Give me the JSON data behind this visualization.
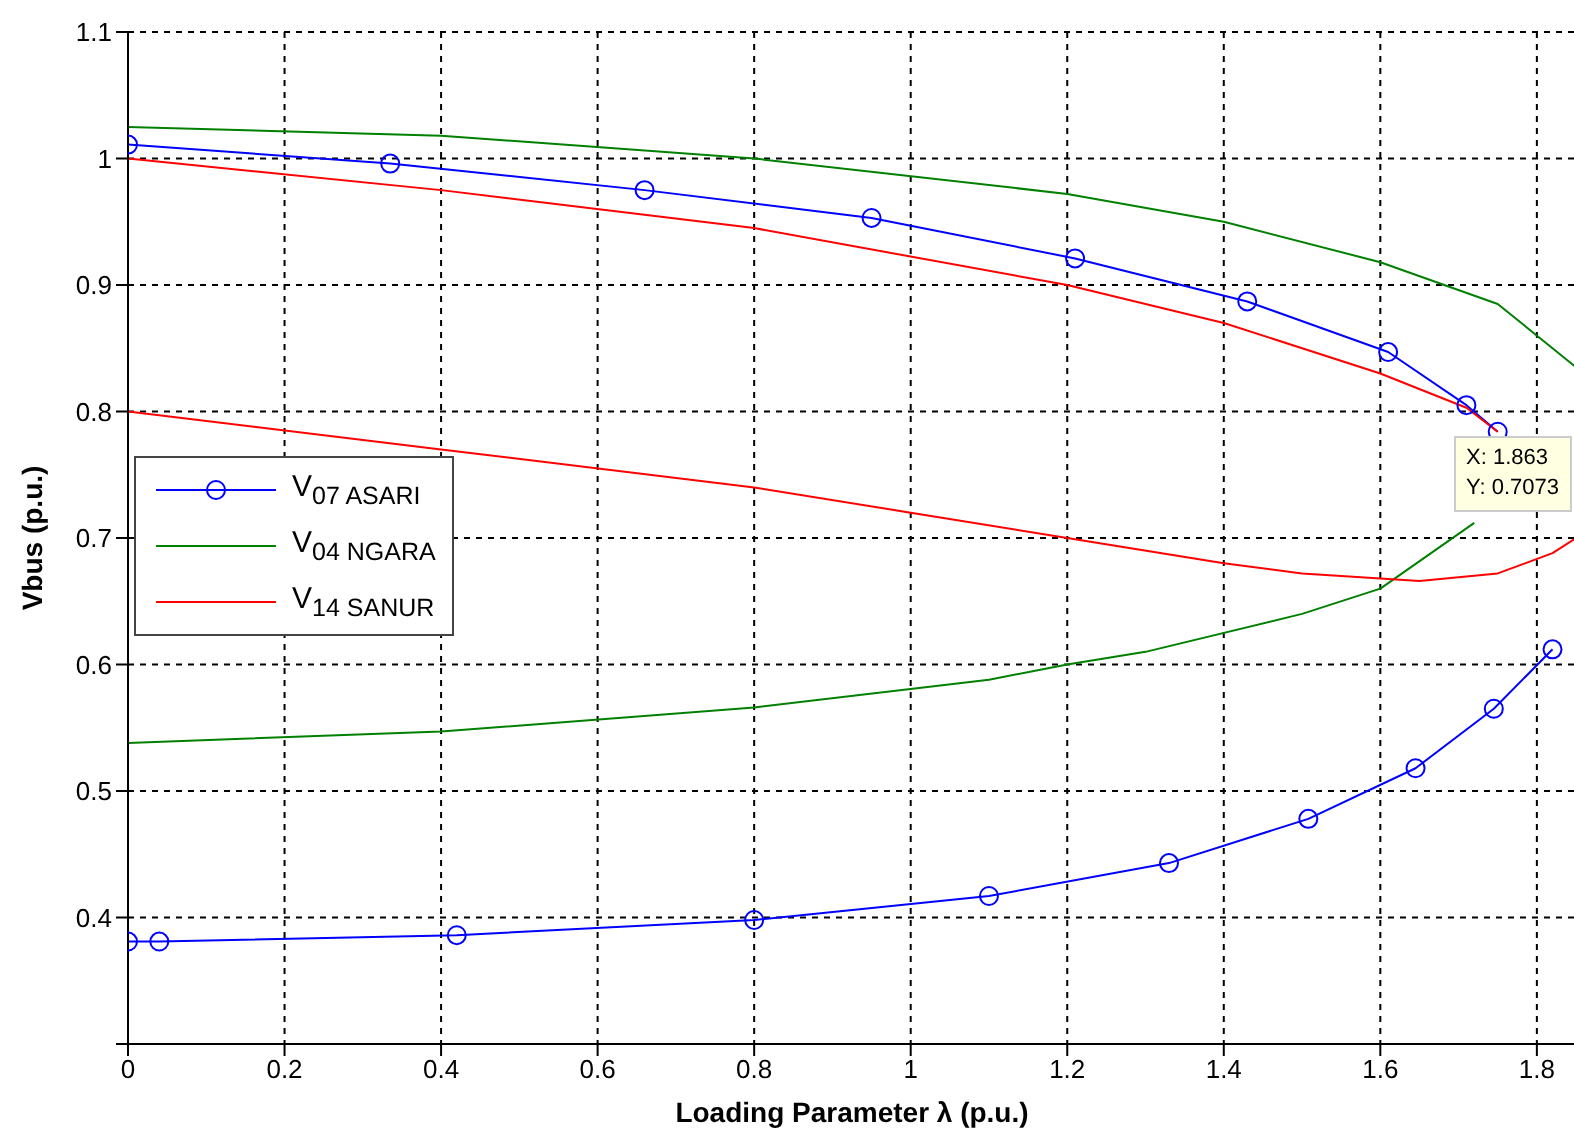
{
  "chart_data": {
    "type": "line",
    "xlabel": "Loading Parameter λ (p.u.)",
    "ylabel": "Vbus (p.u.)",
    "xlim": [
      0,
      1.85
    ],
    "xticks": [
      0,
      0.2,
      0.4,
      0.6,
      0.8,
      1,
      1.2,
      1.4,
      1.6,
      1.8
    ],
    "ylim": [
      0.3,
      1.1
    ],
    "yticks": [
      {
        "value": 0.3,
        "label": null
      },
      0.4,
      0.5,
      0.6,
      0.7,
      0.8,
      0.9,
      1,
      1.1
    ],
    "grid": true,
    "legend": "left",
    "line_style": "solid",
    "annotations": [
      "X: 1.863",
      "Y: 0.7073"
    ],
    "series": [
      {
        "name": "V$_{07 ASARI}$",
        "color": "#0000ff",
        "marker": "circle",
        "x": [
          0,
          0.335,
          0.66,
          0.95,
          1.21,
          1.43,
          1.61,
          1.71,
          1.75,
          null,
          1.82,
          1.745,
          1.645,
          1.508,
          1.33,
          1.1,
          0.8,
          0.42,
          0.04,
          0
        ],
        "values": [
          1.011,
          0.996,
          0.975,
          0.953,
          0.921,
          0.887,
          0.847,
          0.805,
          0.784,
          null,
          0.612,
          0.565,
          0.518,
          0.478,
          0.443,
          0.417,
          0.398,
          0.386,
          0.381,
          0.381
        ]
      },
      {
        "name": "V$_{04 NGARA}$",
        "color": "#008000",
        "marker": "none",
        "x": [
          0,
          0.4,
          0.8,
          1.2,
          1.4,
          1.6,
          1.75,
          1.82,
          1.85,
          null,
          1.72,
          1.6,
          1.5,
          1.3,
          1.2,
          1.1,
          0.8,
          0.4,
          0
        ],
        "values": [
          1.025,
          1.018,
          1.0,
          0.972,
          0.95,
          0.918,
          0.885,
          0.85,
          0.835,
          null,
          0.712,
          0.66,
          0.64,
          0.61,
          0.6,
          0.588,
          0.566,
          0.547,
          0.538
        ]
      },
      {
        "name": "V$_{14 SANUR}$",
        "color": "#ff0000",
        "marker": "none",
        "x": [
          0,
          0.4,
          0.8,
          1.2,
          1.4,
          1.6,
          1.71,
          1.75,
          null,
          1.85,
          1.82,
          1.75,
          1.65,
          1.5,
          1.4,
          1.2,
          1.0,
          0.8,
          0.4,
          0
        ],
        "values": [
          1.0,
          0.975,
          0.945,
          0.9,
          0.87,
          0.83,
          0.803,
          0.784,
          null,
          0.7,
          0.688,
          0.672,
          0.666,
          0.672,
          0.68,
          0.7,
          0.72,
          0.74,
          0.77,
          0.8
        ]
      }
    ]
  }
}
